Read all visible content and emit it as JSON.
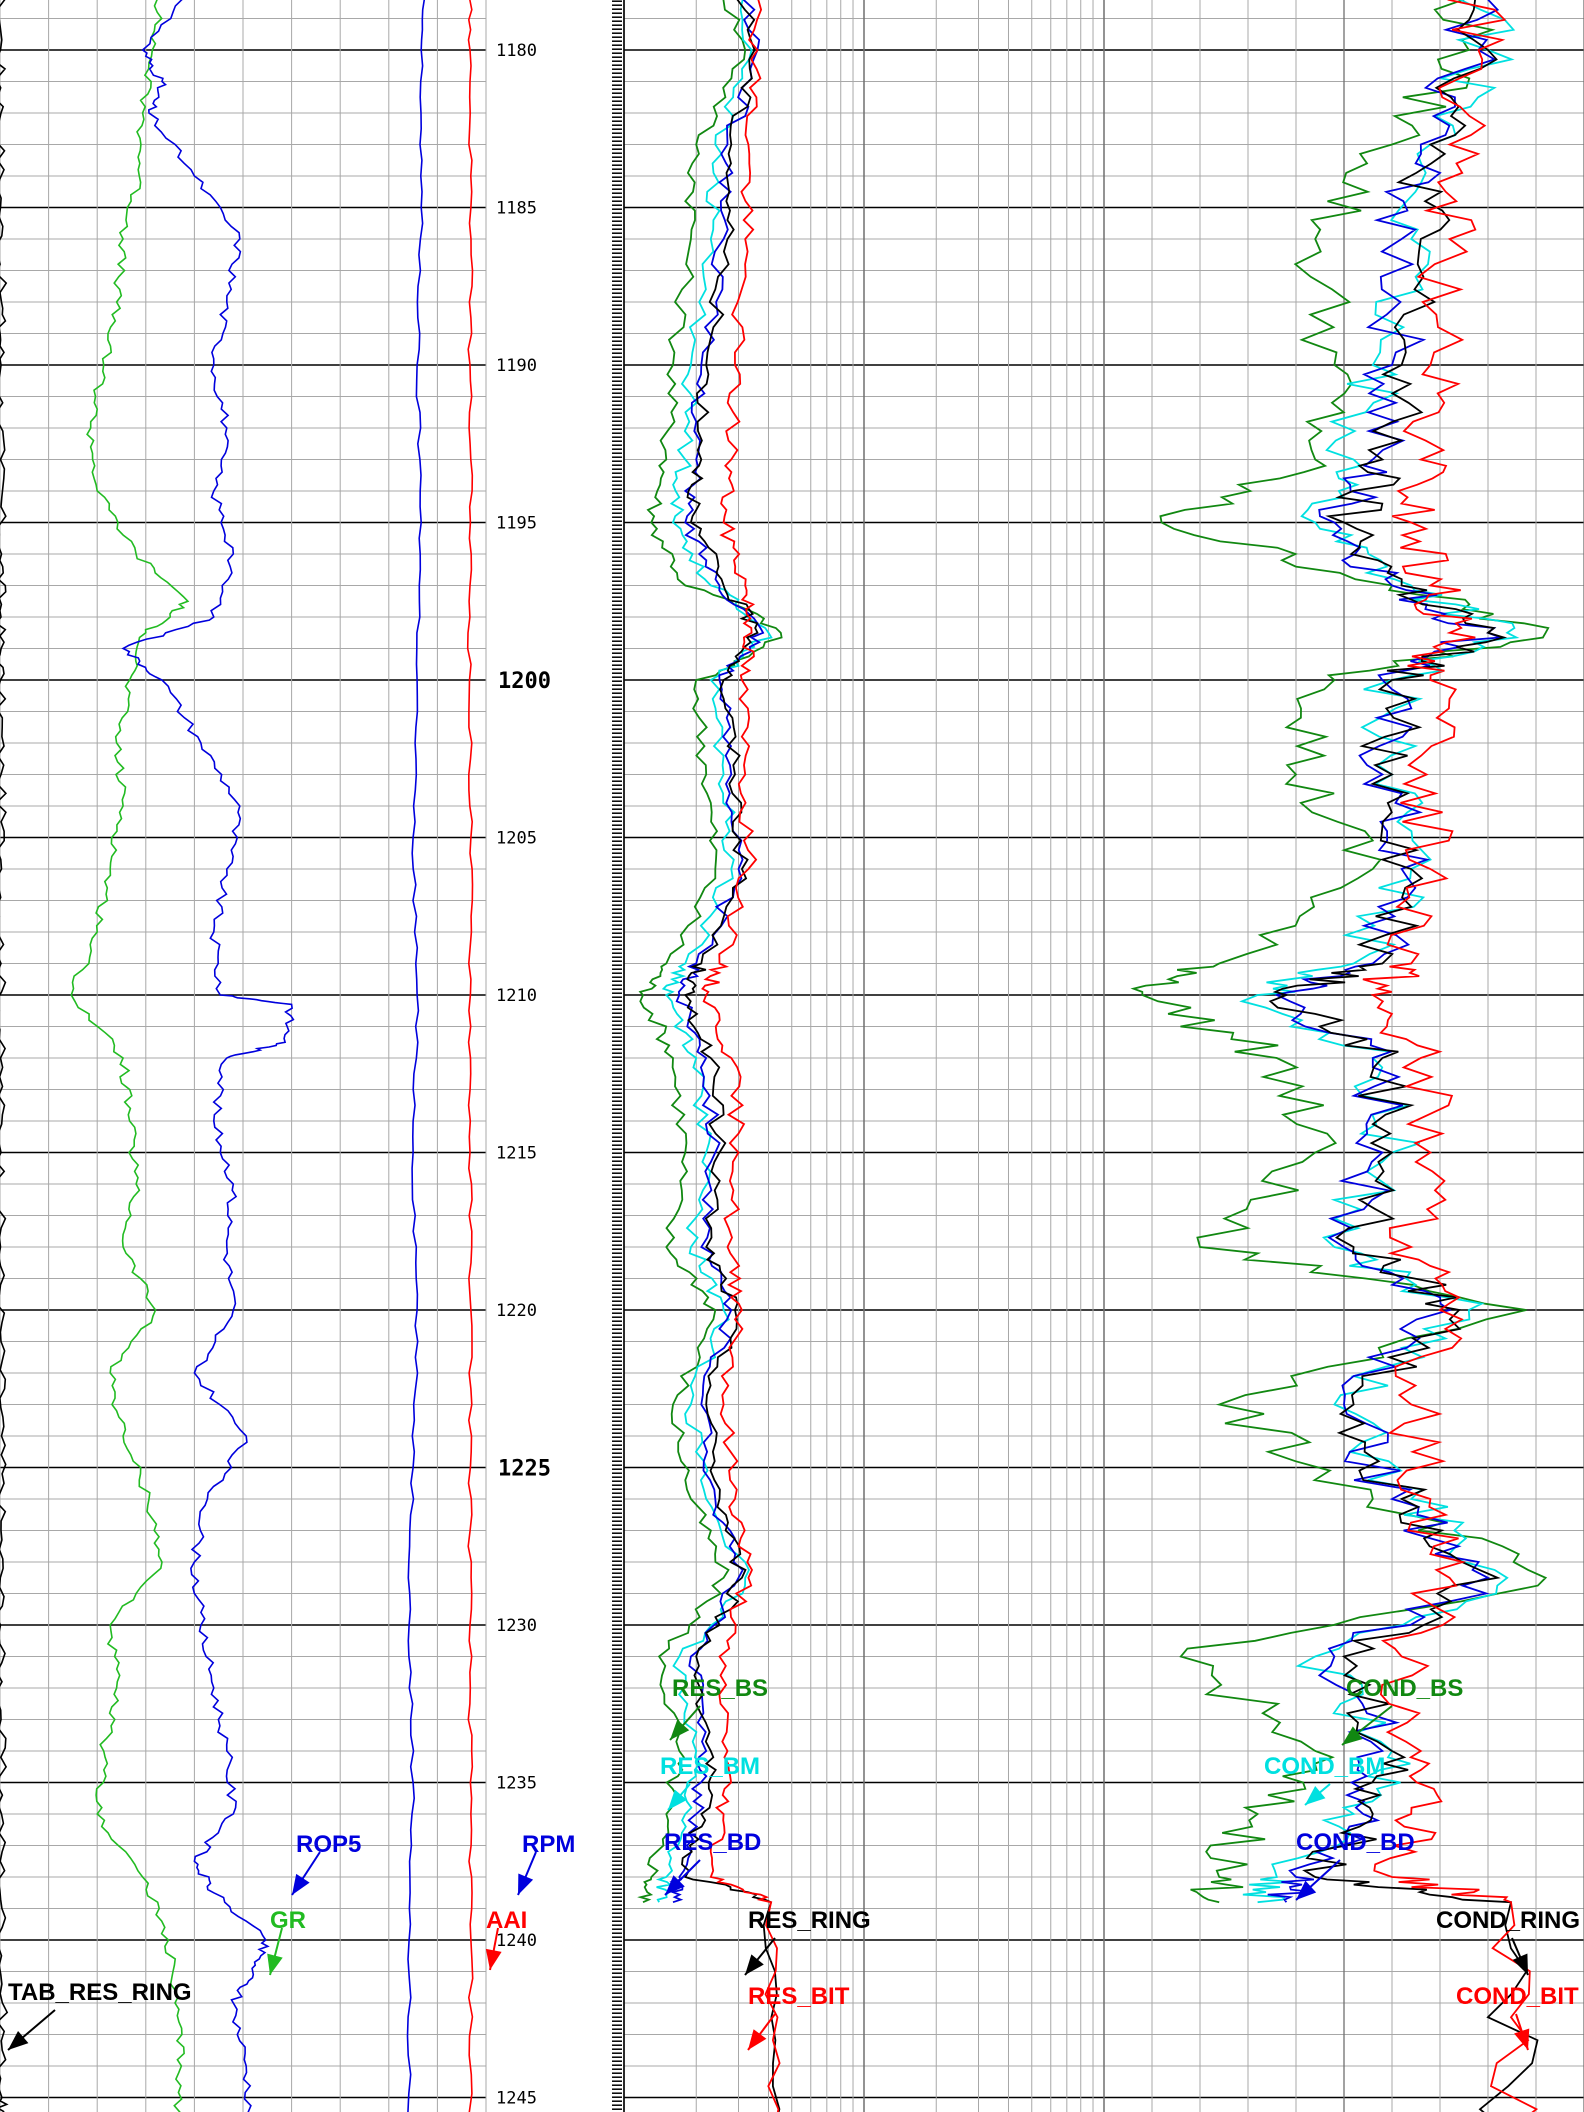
{
  "chart_data": {
    "type": "line",
    "title": "",
    "y_axis": {
      "label": "",
      "range": [
        1176.8,
        1246.1
      ],
      "tick_labels": [
        "1180",
        "1185",
        "1190",
        "1195",
        "1200",
        "1205",
        "1210",
        "1215",
        "1220",
        "1225",
        "1230",
        "1235",
        "1240",
        "1245"
      ],
      "emphasized_ticks": [
        "1200",
        "1225"
      ]
    },
    "grid": true,
    "tracks": [
      {
        "name": "track-1",
        "scale": "linear",
        "curves": [
          {
            "name": "TAB_RES_RING",
            "color": "#000000",
            "depth": [
              1176.8,
              1180,
              1182,
              1185,
              1188,
              1190,
              1193,
              1196,
              1198,
              1200,
              1203,
              1206,
              1209,
              1212,
              1215,
              1218,
              1221,
              1224,
              1227,
              1230,
              1233,
              1236,
              1239,
              1242,
              1245,
              1246.1
            ],
            "value": [
              0.2,
              0.1,
              0.2,
              0.1,
              0.3,
              0.2,
              0.1,
              0.3,
              0.2,
              0.1,
              0.2,
              0.3,
              0.2,
              0.1,
              0.2,
              0.1,
              0.2,
              0.3,
              0.2,
              0.1,
              0.2,
              0.3,
              0.4,
              0.5,
              0.4,
              0.3
            ]
          },
          {
            "name": "GR",
            "color": "#22bb22",
            "depth": [
              1176.8,
              1178,
              1180,
              1182,
              1184,
              1186,
              1188,
              1190,
              1192,
              1194,
              1196,
              1197.5,
              1198.5,
              1200,
              1202,
              1204,
              1206,
              1208,
              1210,
              1212,
              1214,
              1216,
              1218,
              1220,
              1222,
              1224,
              1226,
              1228,
              1230,
              1232,
              1234,
              1236,
              1238,
              1240,
              1242,
              1244,
              1246.1
            ],
            "value": [
              53,
              50,
              47,
              44,
              43,
              38,
              36,
              32,
              28,
              30,
              42,
              58,
              45,
              40,
              36,
              38,
              34,
              30,
              22,
              38,
              40,
              42,
              38,
              48,
              34,
              38,
              46,
              50,
              34,
              36,
              32,
              30,
              44,
              52,
              54,
              56,
              54
            ]
          },
          {
            "name": "ROP5",
            "color": "#0000dd",
            "depth": [
              1176.8,
              1178,
              1180,
              1181,
              1182,
              1184,
              1186,
              1188,
              1190,
              1192,
              1194,
              1196,
              1198,
              1199,
              1200,
              1202,
              1204,
              1206,
              1208,
              1210,
              1210.3,
              1211.5,
              1212,
              1214,
              1216,
              1218,
              1220,
              1222,
              1224,
              1226,
              1228,
              1230,
              1232,
              1234,
              1236,
              1237.5,
              1238.5,
              1240,
              1241,
              1242,
              1244,
              1246.1
            ],
            "value": [
              68,
              60,
              44,
              50,
              46,
              60,
              74,
              70,
              66,
              70,
              66,
              72,
              66,
              38,
              50,
              62,
              74,
              70,
              66,
              68,
              90,
              88,
              70,
              66,
              72,
              70,
              72,
              60,
              76,
              64,
              60,
              62,
              66,
              70,
              72,
              60,
              66,
              82,
              78,
              72,
              76,
              78
            ]
          },
          {
            "name": "RPM",
            "color": "#0000dd",
            "depth": [
              1176.8,
              1180,
              1185,
              1190,
              1195,
              1200,
              1205,
              1210,
              1215,
              1220,
              1225,
              1230,
              1235,
              1240,
              1246.1
            ],
            "value": [
              105,
              104,
              104,
              103,
              104,
              103,
              102,
              103,
              102,
              103,
              102,
              101,
              102,
              101,
              101
            ]
          },
          {
            "name": "AAI",
            "color": "#ff0000",
            "depth": [
              1176.8,
              1180,
              1185,
              1190,
              1195,
              1200,
              1205,
              1210,
              1215,
              1220,
              1225,
              1230,
              1235,
              1240,
              1246.1
            ],
            "value": [
              96.8,
              96.7,
              96.9,
              96.7,
              96.8,
              96.6,
              96.9,
              96.8,
              96.7,
              96.9,
              96.8,
              96.7,
              96.8,
              96.9,
              96.8
            ]
          }
        ]
      },
      {
        "name": "track-2-resistivity",
        "scale": "log",
        "curves": [
          {
            "name": "RES_BS",
            "color": "#118811",
            "depth": [
              1176.8,
              1180,
              1183,
              1186,
              1190,
              1193,
              1195,
              1197,
              1198.5,
              1200,
              1203,
              1206,
              1209,
              1210,
              1212,
              1215,
              1218,
              1220,
              1223,
              1226,
              1228.5,
              1231,
              1234,
              1236,
              1238,
              1238.8
            ],
            "value": [
              2.2,
              3.2,
              2.0,
              1.9,
              1.6,
              1.5,
              1.3,
              1.8,
              4.5,
              2.0,
              2.2,
              2.4,
              1.5,
              1.2,
              1.6,
              1.8,
              1.5,
              2.4,
              1.6,
              1.9,
              2.6,
              1.4,
              1.7,
              1.5,
              1.3,
              1.2
            ]
          },
          {
            "name": "RES_BM",
            "color": "#00e0e0",
            "depth": [
              1176.8,
              1180,
              1183,
              1186,
              1190,
              1193,
              1195,
              1197,
              1198.5,
              1200,
              1203,
              1206,
              1209,
              1210,
              1212,
              1215,
              1218,
              1220,
              1223,
              1226,
              1228.5,
              1231,
              1234,
              1236,
              1238,
              1238.8
            ],
            "value": [
              2.5,
              3.4,
              2.4,
              2.3,
              1.9,
              1.8,
              1.6,
              2.3,
              4.0,
              2.3,
              2.6,
              2.8,
              1.8,
              1.5,
              2.0,
              2.2,
              1.9,
              2.6,
              1.9,
              2.2,
              3.2,
              1.7,
              2.0,
              1.8,
              1.5,
              1.4
            ]
          },
          {
            "name": "RES_BD",
            "color": "#0000dd",
            "depth": [
              1176.8,
              1180,
              1183,
              1186,
              1190,
              1193,
              1195,
              1197,
              1198.5,
              1200,
              1203,
              1206,
              1209,
              1210,
              1212,
              1215,
              1218,
              1220,
              1223,
              1226,
              1228.5,
              1231,
              1234,
              1236,
              1238,
              1238.8
            ],
            "value": [
              2.7,
              3.6,
              2.7,
              2.6,
              2.1,
              2.0,
              1.8,
              2.5,
              3.8,
              2.5,
              2.8,
              3.0,
              2.0,
              1.7,
              2.2,
              2.4,
              2.1,
              2.8,
              2.1,
              2.4,
              3.0,
              1.9,
              2.2,
              2.0,
              1.7,
              1.6
            ]
          },
          {
            "name": "RES_RING",
            "color": "#000000",
            "depth": [
              1176.8,
              1180,
              1183,
              1186,
              1190,
              1193,
              1195,
              1197,
              1198.5,
              1200,
              1203,
              1206,
              1209,
              1210,
              1212,
              1215,
              1218,
              1220,
              1223,
              1226,
              1228.5,
              1231,
              1234,
              1236,
              1238,
              1238.8,
              1246.1
            ],
            "value": [
              2.8,
              3.5,
              2.8,
              2.7,
              2.2,
              2.1,
              1.9,
              2.6,
              3.6,
              2.6,
              2.9,
              3.1,
              2.1,
              1.8,
              2.3,
              2.5,
              2.2,
              2.9,
              2.2,
              2.5,
              3.1,
              2.0,
              2.3,
              2.1,
              1.8,
              4.1,
              4.2
            ]
          },
          {
            "name": "RES_BIT",
            "color": "#ff0000",
            "depth": [
              1176.8,
              1180,
              1183,
              1186,
              1190,
              1193,
              1195,
              1197,
              1198.5,
              1200,
              1203,
              1206,
              1209,
              1210,
              1212,
              1215,
              1218,
              1220,
              1223,
              1226,
              1228.5,
              1231,
              1234,
              1236,
              1238,
              1238.8,
              1246.1
            ],
            "value": [
              3.4,
              3.6,
              3.3,
              3.2,
              2.9,
              2.8,
              2.6,
              3.2,
              3.4,
              3.1,
              3.2,
              3.3,
              2.5,
              2.2,
              2.8,
              3.0,
              2.7,
              3.1,
              2.6,
              2.9,
              3.3,
              2.5,
              2.7,
              2.6,
              2.3,
              4.1,
              4.2
            ]
          }
        ]
      },
      {
        "name": "track-3-conductivity",
        "scale": "linear",
        "curves": [
          {
            "name": "COND_BS",
            "color": "#118811",
            "depth": [
              1176.8,
              1180,
              1183,
              1186,
              1190,
              1193,
              1195,
              1197,
              1198.5,
              1200,
              1203,
              1206,
              1209,
              1210,
              1212,
              1215,
              1218,
              1220,
              1223,
              1226,
              1228.5,
              1231,
              1234,
              1236,
              1238,
              1238.8
            ],
            "value": [
              180,
              190,
              150,
              110,
              120,
              110,
              30,
              150,
              230,
              120,
              100,
              140,
              60,
              20,
              90,
              110,
              50,
              220,
              60,
              140,
              230,
              40,
              110,
              80,
              60,
              60
            ]
          },
          {
            "name": "COND_BM",
            "color": "#00e0e0",
            "depth": [
              1176.8,
              1180,
              1183,
              1186,
              1190,
              1193,
              1195,
              1197,
              1198.5,
              1200,
              1203,
              1206,
              1209,
              1210,
              1212,
              1215,
              1218,
              1220,
              1223,
              1226,
              1228.5,
              1231,
              1234,
              1236,
              1238,
              1238.8
            ],
            "value": [
              190,
              200,
              170,
              160,
              140,
              130,
              110,
              160,
              210,
              150,
              150,
              160,
              130,
              80,
              140,
              150,
              120,
              190,
              120,
              160,
              210,
              110,
              150,
              130,
              90,
              80
            ]
          },
          {
            "name": "COND_BD",
            "color": "#0000dd",
            "depth": [
              1176.8,
              1180,
              1183,
              1186,
              1190,
              1193,
              1195,
              1197,
              1198.5,
              1200,
              1203,
              1206,
              1209,
              1210,
              1212,
              1215,
              1218,
              1220,
              1223,
              1226,
              1228.5,
              1231,
              1234,
              1236,
              1238,
              1238.8
            ],
            "value": [
              185,
              195,
              165,
              155,
              150,
              140,
              120,
              150,
              200,
              145,
              145,
              155,
              140,
              90,
              140,
              145,
              125,
              180,
              125,
              150,
              200,
              120,
              145,
              135,
              100,
              95
            ]
          },
          {
            "name": "COND_RING",
            "color": "#000000",
            "depth": [
              1176.8,
              1180,
              1183,
              1186,
              1190,
              1193,
              1195,
              1197,
              1198.5,
              1200,
              1203,
              1206,
              1209,
              1210,
              1212,
              1215,
              1218,
              1220,
              1223,
              1226,
              1228.5,
              1231,
              1234,
              1236,
              1238,
              1238.8,
              1246.1
            ],
            "value": [
              190,
              200,
              170,
              165,
              155,
              145,
              125,
              155,
              200,
              150,
              150,
              160,
              145,
              95,
              145,
              150,
              130,
              185,
              130,
              155,
              205,
              125,
              150,
              140,
              110,
              212,
              210
            ]
          },
          {
            "name": "COND_BIT",
            "color": "#ff0000",
            "depth": [
              1176.8,
              1180,
              1183,
              1186,
              1190,
              1193,
              1195,
              1197,
              1198.5,
              1200,
              1203,
              1206,
              1209,
              1210,
              1212,
              1215,
              1218,
              1220,
              1223,
              1226,
              1228.5,
              1231,
              1234,
              1236,
              1238,
              1238.8,
              1246.1
            ],
            "value": [
              190,
              195,
              180,
              180,
              170,
              165,
              160,
              170,
              180,
              170,
              168,
              170,
              160,
              140,
              165,
              170,
              160,
              175,
              160,
              170,
              180,
              155,
              165,
              160,
              150,
              212,
              210
            ]
          }
        ]
      }
    ],
    "curve_labels": [
      "TAB_RES_RING",
      "GR",
      "ROP5",
      "RPM",
      "AAI",
      "RES_BS",
      "RES_BM",
      "RES_BD",
      "RES_RING",
      "RES_BIT",
      "COND_BS",
      "COND_BM",
      "COND_BD",
      "COND_RING",
      "COND_BIT"
    ],
    "colors": {
      "green": "#22bb22",
      "dark_green": "#118811",
      "blue": "#0000dd",
      "cyan": "#00e0e0",
      "red": "#ff0000",
      "black": "#000000"
    }
  }
}
